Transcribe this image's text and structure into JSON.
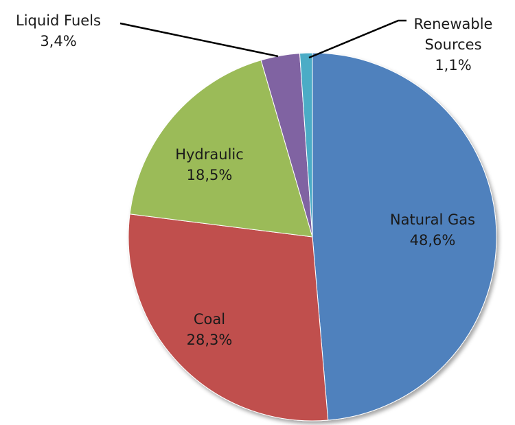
{
  "chart_data": {
    "type": "pie",
    "categories": [
      "Natural Gas",
      "Coal",
      "Hydraulic",
      "Liquid Fuels",
      "Renewable Sources"
    ],
    "values": [
      48.6,
      28.3,
      18.5,
      3.4,
      1.1
    ],
    "value_labels": [
      "48,6%",
      "28,3%",
      "18,5%",
      "3,4%",
      "1,1%"
    ],
    "colors": [
      "#4f81bd",
      "#c0504d",
      "#9bbb59",
      "#8064a2",
      "#4bacc6"
    ]
  }
}
